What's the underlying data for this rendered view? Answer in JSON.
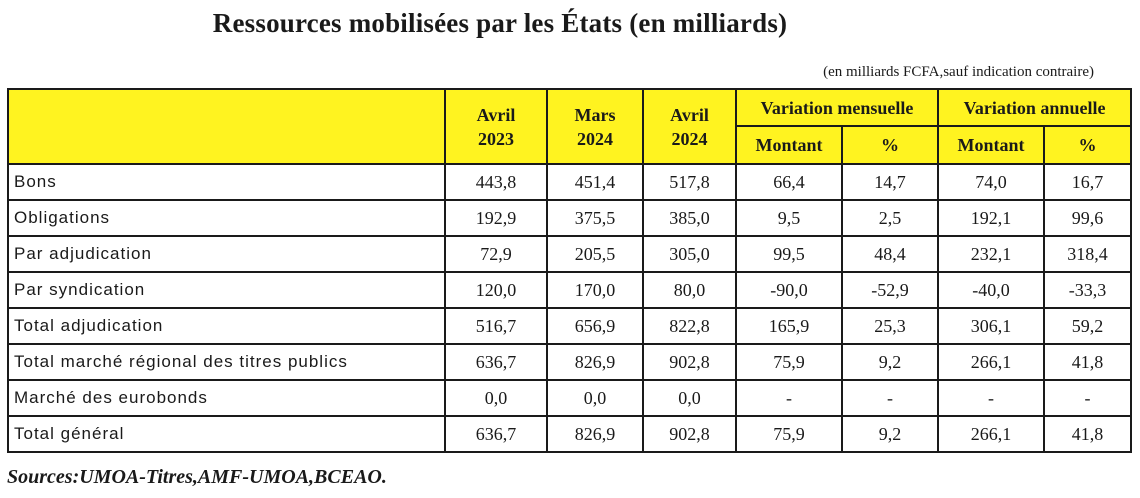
{
  "title": "Ressources mobilisées par les États (en milliards)",
  "unit_note": "(en milliards FCFA,sauf indication contraire)",
  "header": {
    "periods": [
      {
        "month": "Avril",
        "year": "2023"
      },
      {
        "month": "Mars",
        "year": "2024"
      },
      {
        "month": "Avril",
        "year": "2024"
      }
    ],
    "groups": [
      "Variation mensuelle",
      "Variation annuelle"
    ],
    "montant": "Montant",
    "pct": "%"
  },
  "rows": [
    {
      "label": "Bons",
      "values": [
        "443,8",
        "451,4",
        "517,8",
        "66,4",
        "14,7",
        "74,0",
        "16,7"
      ]
    },
    {
      "label": "Obligations",
      "values": [
        "192,9",
        "375,5",
        "385,0",
        "9,5",
        "2,5",
        "192,1",
        "99,6"
      ]
    },
    {
      "label": "Par adjudication",
      "values": [
        "72,9",
        "205,5",
        "305,0",
        "99,5",
        "48,4",
        "232,1",
        "318,4"
      ]
    },
    {
      "label": "Par syndication",
      "values": [
        "120,0",
        "170,0",
        "80,0",
        "-90,0",
        "-52,9",
        "-40,0",
        "-33,3"
      ]
    },
    {
      "label": "Total adjudication",
      "values": [
        "516,7",
        "656,9",
        "822,8",
        "165,9",
        "25,3",
        "306,1",
        "59,2"
      ]
    },
    {
      "label": "Total marché régional des titres publics",
      "values": [
        "636,7",
        "826,9",
        "902,8",
        "75,9",
        "9,2",
        "266,1",
        "41,8"
      ]
    },
    {
      "label": "Marché des eurobonds",
      "values": [
        "0,0",
        "0,0",
        "0,0",
        "-",
        "-",
        "-",
        "-"
      ]
    },
    {
      "label": "Total général",
      "values": [
        "636,7",
        "826,9",
        "902,8",
        "75,9",
        "9,2",
        "266,1",
        "41,8"
      ]
    }
  ],
  "sources": "Sources:UMOA-Titres,AMF-UMOA,BCEAO.",
  "colors": {
    "header_fill": "#fff320",
    "border": "#1a1a1a"
  }
}
